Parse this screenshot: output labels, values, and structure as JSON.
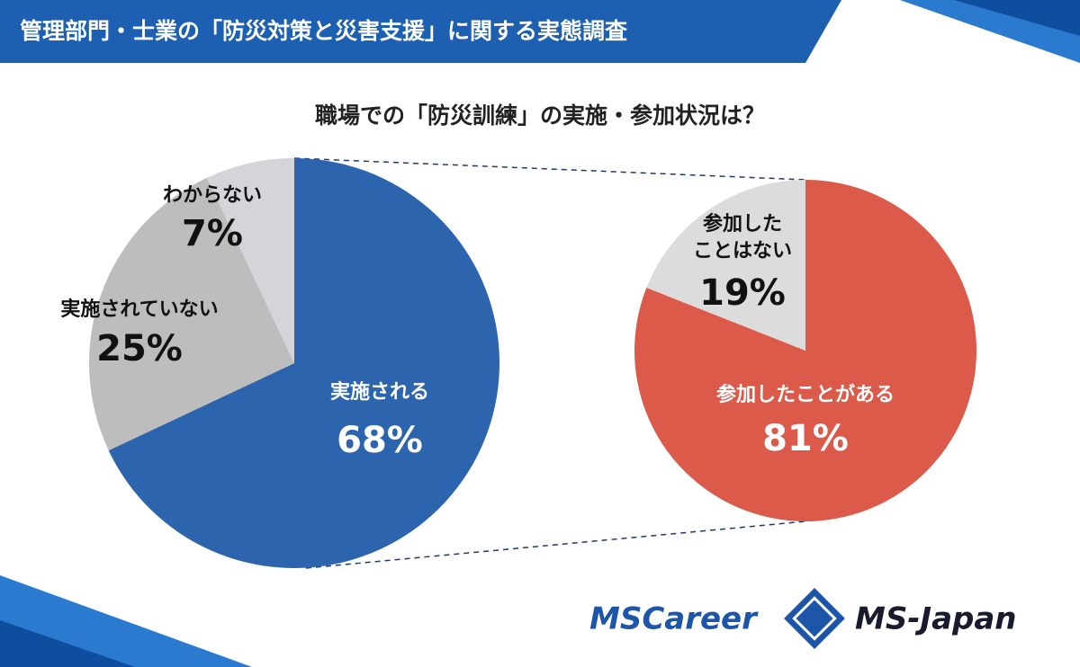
{
  "header": {
    "title": "管理部門・士業の「防災対策と災害支援」に関する実態調査"
  },
  "chart_data": [
    {
      "type": "pie",
      "title": "職場での「防災訓練」の実施・参加状況は？",
      "categories": [
        "実施される",
        "実施されていない",
        "わからない"
      ],
      "values": [
        68,
        25,
        7
      ],
      "value_labels": [
        "68%",
        "25%",
        "7%"
      ],
      "colors": [
        "#2c64ae",
        "#bdbdbd",
        "#d4d5d9"
      ]
    },
    {
      "type": "pie",
      "categories": [
        "参加したことがある",
        "参加した\nことはない"
      ],
      "values": [
        81,
        19
      ],
      "value_labels": [
        "81%",
        "19%"
      ],
      "colors": [
        "#dc5a4a",
        "#dcdcdc"
      ]
    }
  ],
  "logos": [
    "MSCareer",
    "MS-Japan"
  ]
}
